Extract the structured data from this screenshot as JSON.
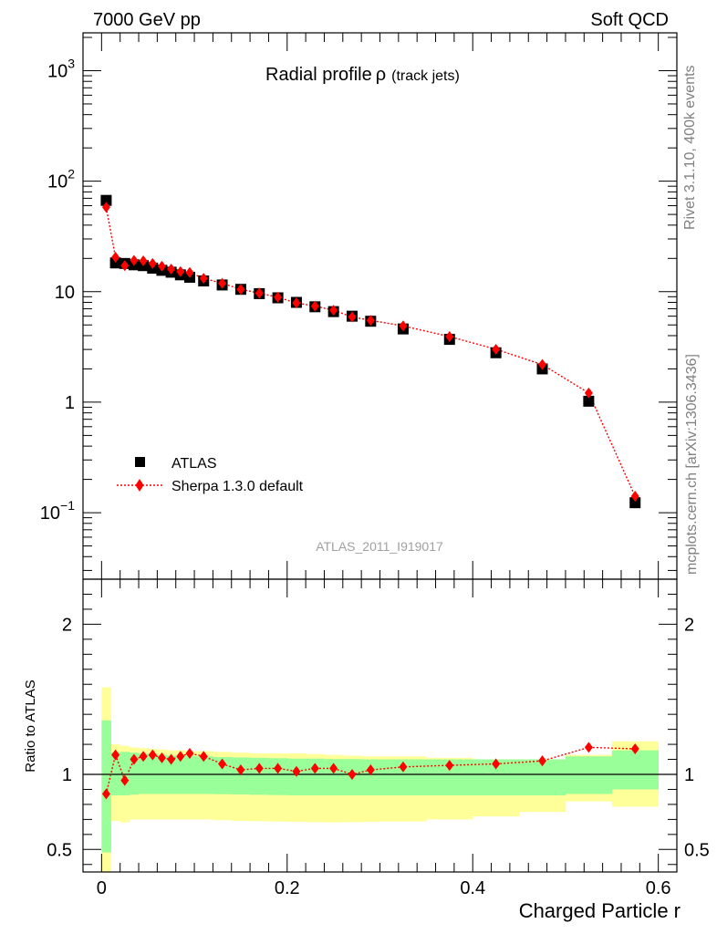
{
  "header": {
    "left_label": "7000 GeV pp",
    "right_label": "Soft QCD"
  },
  "side": {
    "rivet_info": "Rivet 3.1.10,  400k events",
    "mcplots_info": "mcplots.cern.ch [arXiv:1306.3436]"
  },
  "main_plot": {
    "title_main": "Radial profile",
    "title_symbol": "ρ",
    "title_sub": "(track jets)",
    "analysis_id": "ATLAS_2011_I919017",
    "legend": {
      "data_label": "ATLAS",
      "mc_label": "Sherpa 1.3.0 default"
    },
    "y_ticks": [
      {
        "value": 1000,
        "base": "10",
        "exp": "3"
      },
      {
        "value": 100,
        "base": "10",
        "exp": "2"
      },
      {
        "value": 10,
        "base": "10",
        "exp": ""
      },
      {
        "value": 1,
        "base": "1",
        "exp": ""
      },
      {
        "value": 0.1,
        "base": "10",
        "exp": "−1"
      }
    ]
  },
  "ratio_plot": {
    "ylabel": "Ratio to ATLAS",
    "y_ticks": [
      "0.5",
      "1",
      "2"
    ],
    "x_ticks": [
      "0",
      "0.2",
      "0.4",
      "0.6"
    ],
    "xlabel": "Charged Particle r"
  },
  "chart_data": [
    {
      "type": "scatter",
      "title": "Radial profile ρ (track jets)",
      "xlabel": "Charged Particle r",
      "ylabel": "",
      "yscale": "log",
      "xlim": [
        -0.02,
        0.62
      ],
      "ylim": [
        0.025,
        2200
      ],
      "x": [
        0.005,
        0.015,
        0.025,
        0.035,
        0.045,
        0.055,
        0.065,
        0.075,
        0.085,
        0.095,
        0.11,
        0.13,
        0.15,
        0.17,
        0.19,
        0.21,
        0.23,
        0.25,
        0.27,
        0.29,
        0.325,
        0.375,
        0.425,
        0.475,
        0.525,
        0.575
      ],
      "series": [
        {
          "name": "ATLAS",
          "marker": "square",
          "color": "#000000",
          "values": [
            67,
            18.2,
            18.0,
            17.5,
            17.2,
            16.3,
            15.6,
            15.0,
            14.2,
            13.5,
            12.5,
            11.5,
            10.5,
            9.6,
            8.8,
            8.0,
            7.3,
            6.6,
            6.0,
            5.4,
            4.6,
            3.7,
            2.8,
            2.0,
            1.02,
            0.123
          ]
        },
        {
          "name": "Sherpa 1.3.0 default",
          "marker": "diamond",
          "line": "dotted",
          "color": "#ff0000",
          "values": [
            58,
            20.5,
            17.2,
            19.2,
            19.0,
            18.0,
            17.0,
            16.0,
            15.2,
            14.9,
            13.2,
            11.9,
            10.5,
            9.7,
            8.9,
            7.9,
            7.4,
            6.8,
            5.9,
            5.5,
            4.9,
            3.92,
            3.01,
            2.19,
            1.21,
            0.141
          ]
        }
      ]
    },
    {
      "type": "scatter",
      "xlabel": "Charged Particle r",
      "ylabel": "Ratio to ATLAS",
      "xlim": [
        -0.02,
        0.62
      ],
      "ylim": [
        0.35,
        2.3
      ],
      "reference_line": 1.0,
      "bin_edges": [
        0,
        0.01,
        0.02,
        0.03,
        0.04,
        0.05,
        0.06,
        0.07,
        0.08,
        0.09,
        0.1,
        0.12,
        0.14,
        0.16,
        0.18,
        0.2,
        0.22,
        0.24,
        0.26,
        0.28,
        0.3,
        0.35,
        0.4,
        0.45,
        0.5,
        0.55,
        0.6
      ],
      "bands": [
        {
          "name": "stat uncertainty",
          "color": "#99ff99",
          "low": [
            0.48,
            0.86,
            0.86,
            0.865,
            0.87,
            0.87,
            0.87,
            0.87,
            0.87,
            0.87,
            0.87,
            0.868,
            0.866,
            0.864,
            0.862,
            0.86,
            0.86,
            0.86,
            0.86,
            0.86,
            0.86,
            0.86,
            0.86,
            0.86,
            0.87,
            0.9
          ],
          "high": [
            1.36,
            1.145,
            1.15,
            1.145,
            1.14,
            1.135,
            1.13,
            1.125,
            1.12,
            1.12,
            1.12,
            1.115,
            1.113,
            1.11,
            1.108,
            1.105,
            1.105,
            1.102,
            1.102,
            1.1,
            1.1,
            1.1,
            1.1,
            1.1,
            1.12,
            1.16
          ]
        },
        {
          "name": "total uncertainty",
          "color": "#ffff99",
          "low": [
            0.31,
            0.69,
            0.68,
            0.7,
            0.7,
            0.7,
            0.7,
            0.7,
            0.7,
            0.7,
            0.7,
            0.695,
            0.69,
            0.688,
            0.686,
            0.684,
            0.682,
            0.68,
            0.682,
            0.684,
            0.686,
            0.7,
            0.72,
            0.75,
            0.82,
            0.785
          ],
          "high": [
            1.58,
            1.2,
            1.19,
            1.18,
            1.175,
            1.17,
            1.165,
            1.16,
            1.16,
            1.155,
            1.155,
            1.15,
            1.145,
            1.14,
            1.14,
            1.14,
            1.135,
            1.13,
            1.125,
            1.12,
            1.12,
            1.11,
            1.1,
            1.1,
            1.13,
            1.22
          ]
        }
      ],
      "x": [
        0.005,
        0.015,
        0.025,
        0.035,
        0.045,
        0.055,
        0.065,
        0.075,
        0.085,
        0.095,
        0.11,
        0.13,
        0.15,
        0.17,
        0.19,
        0.21,
        0.23,
        0.25,
        0.27,
        0.29,
        0.325,
        0.375,
        0.425,
        0.475,
        0.525,
        0.575
      ],
      "series": [
        {
          "name": "Sherpa 1.3.0 default / ATLAS",
          "marker": "diamond",
          "color": "#ff0000",
          "values": [
            0.87,
            1.13,
            0.96,
            1.1,
            1.12,
            1.13,
            1.11,
            1.1,
            1.12,
            1.14,
            1.12,
            1.07,
            1.03,
            1.04,
            1.04,
            1.02,
            1.04,
            1.04,
            1.0,
            1.03,
            1.05,
            1.06,
            1.07,
            1.09,
            1.18,
            1.17
          ]
        }
      ]
    }
  ]
}
